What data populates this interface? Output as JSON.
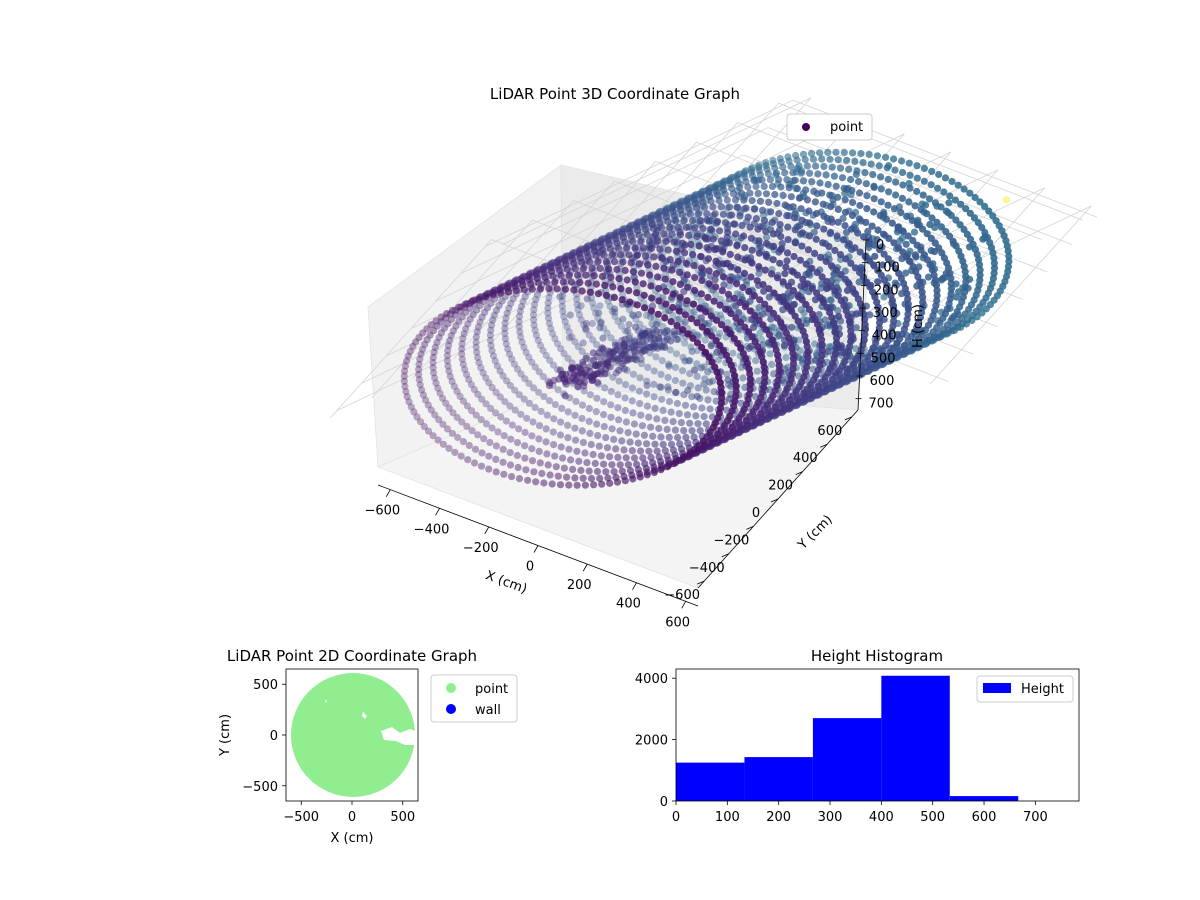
{
  "chart_data": [
    {
      "type": "scatter",
      "projection": "3d",
      "title": "LiDAR Point 3D Coordinate Graph",
      "xlabel": "X (cm)",
      "ylabel": "Y (cm)",
      "zlabel": "H (cm)",
      "xticks": [
        "−600",
        "−400",
        "−200",
        "0",
        "200",
        "400",
        "600"
      ],
      "yticks": [
        "600",
        "400",
        "200",
        "0",
        "−200",
        "−400",
        "−600"
      ],
      "zticks": [
        "0",
        "100",
        "200",
        "300",
        "400",
        "500",
        "600",
        "700"
      ],
      "xlim": [
        -650,
        650
      ],
      "ylim": [
        -650,
        650
      ],
      "zlim": [
        0,
        750
      ],
      "z_inverted": true,
      "colormap": "viridis",
      "legend": {
        "labels": [
          "point"
        ],
        "placement": "upper right"
      },
      "series": [
        {
          "name": "point",
          "description_shape": "ring wall of radius ~600 cm sampled every ~3 degrees across heights 0-700 cm, plus interior structure",
          "ring_radius": 600,
          "ring_height_range": [
            0,
            700
          ],
          "outliers": [
            {
              "x": 350,
              "y": -600,
              "z": 700
            }
          ]
        }
      ]
    },
    {
      "type": "scatter",
      "title": "LiDAR Point 2D Coordinate Graph",
      "xlabel": "X (cm)",
      "ylabel": "Y (cm)",
      "xticks": [
        "−500",
        "0",
        "500"
      ],
      "yticks": [
        "500",
        "0",
        "−500"
      ],
      "xlim": [
        -650,
        650
      ],
      "ylim": [
        -650,
        650
      ],
      "legend": {
        "labels": [
          "point",
          "wall"
        ],
        "placement": "outside upper right"
      },
      "series": [
        {
          "name": "point",
          "color": "#90ee90",
          "shape": "filled disc",
          "radius": 620
        },
        {
          "name": "wall",
          "color": "#0000ff"
        }
      ]
    },
    {
      "type": "bar",
      "subtype": "histogram",
      "title": "Height Histogram",
      "xticks": [
        "0",
        "100",
        "200",
        "300",
        "400",
        "500",
        "600",
        "700"
      ],
      "yticks": [
        "0",
        "2000",
        "4000"
      ],
      "xlim": [
        0,
        785
      ],
      "ylim": [
        0,
        4300
      ],
      "bin_edges": [
        0,
        133.3,
        266.7,
        400,
        533.3,
        666.7,
        800
      ],
      "values": [
        1250,
        1430,
        2700,
        4080,
        160,
        0
      ],
      "legend": {
        "labels": [
          "Height"
        ],
        "placement": "upper right"
      },
      "color": "#0000ff"
    }
  ]
}
